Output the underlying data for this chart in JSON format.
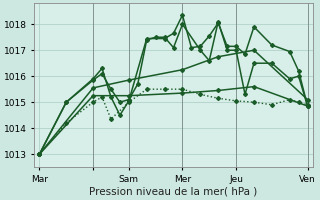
{
  "background_color": "#cce8e0",
  "plot_bg": "#d8eee8",
  "grid_color": "#a8ccc4",
  "line_color": "#1a5c28",
  "xlabel": "Pression niveau de la mer( hPa )",
  "ylim_min": 1012.5,
  "ylim_max": 1018.8,
  "yticks": [
    1013,
    1014,
    1015,
    1016,
    1017,
    1018
  ],
  "xlabel_fontsize": 7.5,
  "tick_fontsize": 6.5,
  "series": [
    {
      "x": [
        0,
        1.5,
        3,
        3.5,
        4,
        4.5,
        5,
        6,
        7,
        7.5,
        8,
        8.5,
        9,
        9.5,
        10,
        10.5,
        11,
        11.5,
        12,
        13,
        14,
        14.5,
        15
      ],
      "y": [
        1013.0,
        1015.0,
        1015.9,
        1016.3,
        1015.2,
        1014.5,
        1015.05,
        1017.45,
        1017.45,
        1017.65,
        1018.35,
        1017.1,
        1017.15,
        1017.55,
        1018.05,
        1017.15,
        1017.15,
        1016.85,
        1017.9,
        1017.2,
        1016.95,
        1016.2,
        1014.85
      ],
      "style": "-",
      "lw": 1.1,
      "marker": "D",
      "ms": 2.0
    },
    {
      "x": [
        0,
        1.5,
        3,
        3.5,
        4,
        4.5,
        5,
        5.5,
        6,
        6.5,
        7,
        7.5,
        8,
        9,
        9.5,
        10,
        10.5,
        11,
        11.5,
        12,
        13,
        14,
        14.5,
        15
      ],
      "y": [
        1013.0,
        1015.0,
        1015.85,
        1016.1,
        1015.5,
        1015.0,
        1015.1,
        1015.7,
        1017.4,
        1017.5,
        1017.5,
        1017.1,
        1018.0,
        1017.0,
        1016.6,
        1018.1,
        1017.0,
        1017.0,
        1015.3,
        1016.5,
        1016.5,
        1015.9,
        1016.0,
        1014.85
      ],
      "style": "-",
      "lw": 1.1,
      "marker": "D",
      "ms": 2.0
    },
    {
      "x": [
        0,
        3,
        5,
        8,
        10,
        12,
        15
      ],
      "y": [
        1013.0,
        1015.55,
        1015.85,
        1016.25,
        1016.75,
        1017.0,
        1015.1
      ],
      "style": "-",
      "lw": 1.1,
      "marker": "D",
      "ms": 2.0
    },
    {
      "x": [
        0,
        3,
        5,
        8,
        10,
        12,
        15
      ],
      "y": [
        1013.0,
        1015.25,
        1015.25,
        1015.35,
        1015.45,
        1015.6,
        1014.85
      ],
      "style": "-",
      "lw": 1.1,
      "marker": "D",
      "ms": 2.0
    },
    {
      "x": [
        0,
        1.5,
        3,
        3.5,
        4,
        5,
        6,
        7,
        8,
        9,
        10,
        11,
        12,
        13,
        14,
        14.5,
        15
      ],
      "y": [
        1013.0,
        1014.2,
        1015.0,
        1015.2,
        1014.35,
        1015.0,
        1015.5,
        1015.5,
        1015.5,
        1015.3,
        1015.15,
        1015.05,
        1015.0,
        1014.9,
        1015.1,
        1015.0,
        1014.9
      ],
      "style": ":",
      "lw": 1.0,
      "marker": "D",
      "ms": 2.0
    }
  ],
  "day_ticks_x": [
    0,
    3,
    5,
    8,
    11,
    15
  ],
  "day_labels": [
    "Mar",
    "",
    "Sam",
    "Mer",
    "Jeu",
    "Ven"
  ],
  "vline_x": [
    3,
    5,
    8,
    11,
    15
  ],
  "xlim_min": -0.3,
  "xlim_max": 15.3
}
